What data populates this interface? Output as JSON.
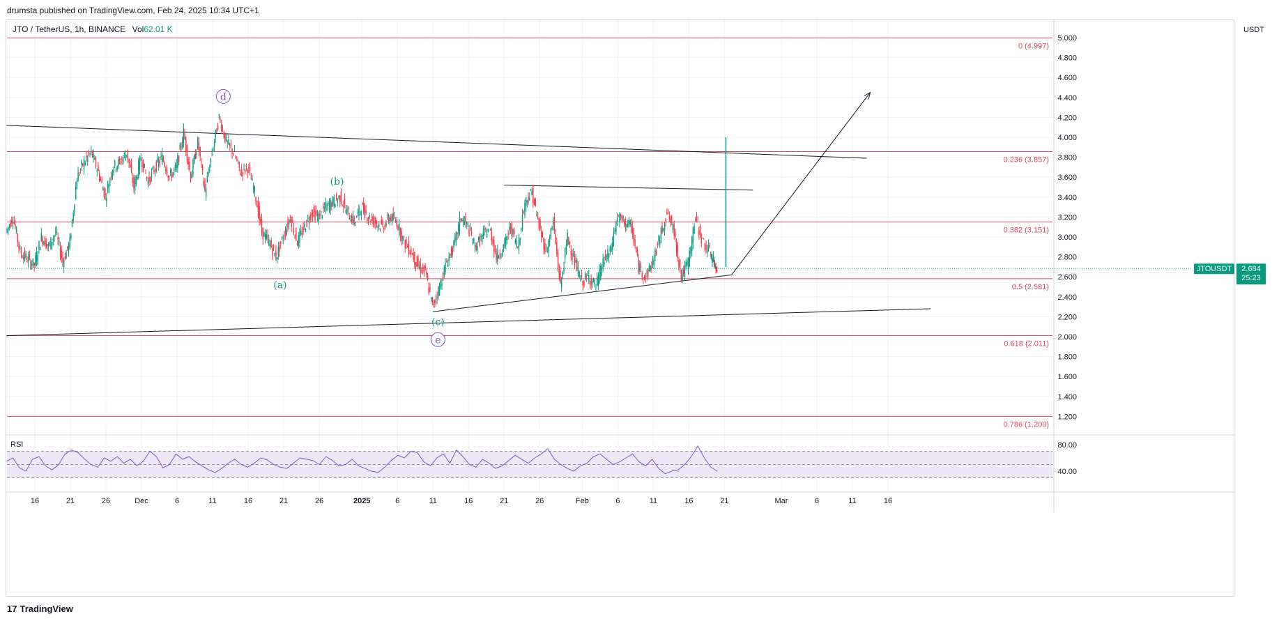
{
  "header": {
    "publisher_text": "drumsta published on TradingView.com, Feb 24, 2025 10:34 UTC+1"
  },
  "symbol": {
    "name": "JTO / TetherUS, 1h, BINANCE",
    "vol_label": "Vol",
    "vol_value": "62.01 K",
    "ticker": "JTOUSDT"
  },
  "price_axis": {
    "unit": "USDT",
    "last_price": "2.684",
    "countdown": "25:23"
  },
  "footer": {
    "brand": "TradingView"
  },
  "colors": {
    "up": "#089981",
    "down": "#f23645",
    "fib": "#d9485f",
    "trend": "#131722",
    "rsi": "#7e57c2",
    "rsi_band": "#ede7f6",
    "label_green": "#089981",
    "label_purple": "#7e57c2",
    "grid": "#f0f3fa"
  },
  "chart_data": {
    "type": "line",
    "title": "JTO / TetherUS, 1h, BINANCE",
    "ylim": [
      1.1,
      5.05
    ],
    "y_ticks": [
      "1.200",
      "1.400",
      "1.600",
      "1.800",
      "2.000",
      "2.200",
      "2.400",
      "2.600",
      "2.800",
      "3.000",
      "3.200",
      "3.400",
      "3.600",
      "3.800",
      "4.000",
      "4.200",
      "4.400",
      "4.600",
      "4.800",
      "5.000"
    ],
    "x_ticks": [
      {
        "label": "16",
        "day": 15
      },
      {
        "label": "21",
        "day": 20
      },
      {
        "label": "26",
        "day": 25
      },
      {
        "label": "Dec",
        "day": 30
      },
      {
        "label": "6",
        "day": 35
      },
      {
        "label": "11",
        "day": 40
      },
      {
        "label": "16",
        "day": 45
      },
      {
        "label": "21",
        "day": 50
      },
      {
        "label": "26",
        "day": 55
      },
      {
        "label": "2025",
        "day": 61
      },
      {
        "label": "6",
        "day": 66
      },
      {
        "label": "11",
        "day": 71
      },
      {
        "label": "16",
        "day": 76
      },
      {
        "label": "21",
        "day": 81
      },
      {
        "label": "26",
        "day": 86
      },
      {
        "label": "Feb",
        "day": 92
      },
      {
        "label": "6",
        "day": 97
      },
      {
        "label": "11",
        "day": 102
      },
      {
        "label": "16",
        "day": 107
      },
      {
        "label": "21",
        "day": 112
      },
      {
        "label": "Mar",
        "day": 120
      },
      {
        "label": "6",
        "day": 125
      },
      {
        "label": "11",
        "day": 130
      },
      {
        "label": "16",
        "day": 135
      }
    ],
    "price_path": [
      [
        11,
        3.05
      ],
      [
        12,
        3.2
      ],
      [
        13,
        2.85
      ],
      [
        14,
        2.78
      ],
      [
        15,
        2.72
      ],
      [
        16,
        3.0
      ],
      [
        17,
        2.9
      ],
      [
        18,
        3.05
      ],
      [
        19,
        2.75
      ],
      [
        20,
        2.95
      ],
      [
        21,
        3.6
      ],
      [
        22,
        3.75
      ],
      [
        23,
        3.85
      ],
      [
        24,
        3.65
      ],
      [
        25,
        3.4
      ],
      [
        26,
        3.7
      ],
      [
        27,
        3.75
      ],
      [
        28,
        3.85
      ],
      [
        29,
        3.5
      ],
      [
        30,
        3.8
      ],
      [
        31,
        3.55
      ],
      [
        32,
        3.7
      ],
      [
        33,
        3.8
      ],
      [
        34,
        3.6
      ],
      [
        35,
        3.7
      ],
      [
        36,
        4.05
      ],
      [
        37,
        3.6
      ],
      [
        38,
        3.95
      ],
      [
        39,
        3.45
      ],
      [
        40,
        3.85
      ],
      [
        41,
        4.2
      ],
      [
        42,
        3.95
      ],
      [
        43,
        3.85
      ],
      [
        44,
        3.65
      ],
      [
        45,
        3.7
      ],
      [
        46,
        3.45
      ],
      [
        47,
        3.05
      ],
      [
        48,
        2.95
      ],
      [
        49,
        2.8
      ],
      [
        50,
        3.0
      ],
      [
        51,
        3.2
      ],
      [
        52,
        2.95
      ],
      [
        53,
        3.1
      ],
      [
        54,
        3.25
      ],
      [
        55,
        3.2
      ],
      [
        56,
        3.3
      ],
      [
        57,
        3.35
      ],
      [
        58,
        3.4
      ],
      [
        59,
        3.25
      ],
      [
        60,
        3.15
      ],
      [
        61,
        3.3
      ],
      [
        62,
        3.2
      ],
      [
        63,
        3.15
      ],
      [
        64,
        3.1
      ],
      [
        65,
        3.2
      ],
      [
        66,
        3.15
      ],
      [
        67,
        2.95
      ],
      [
        68,
        2.85
      ],
      [
        69,
        2.7
      ],
      [
        70,
        2.65
      ],
      [
        71,
        2.3
      ],
      [
        72,
        2.5
      ],
      [
        73,
        2.75
      ],
      [
        74,
        2.9
      ],
      [
        75,
        3.2
      ],
      [
        76,
        3.1
      ],
      [
        77,
        2.9
      ],
      [
        78,
        3.0
      ],
      [
        79,
        3.1
      ],
      [
        80,
        2.8
      ],
      [
        81,
        2.9
      ],
      [
        82,
        3.1
      ],
      [
        83,
        2.9
      ],
      [
        84,
        3.35
      ],
      [
        85,
        3.45
      ],
      [
        86,
        3.1
      ],
      [
        87,
        2.85
      ],
      [
        88,
        3.15
      ],
      [
        89,
        2.5
      ],
      [
        90,
        3.0
      ],
      [
        91,
        2.75
      ],
      [
        92,
        2.55
      ],
      [
        93,
        2.6
      ],
      [
        94,
        2.5
      ],
      [
        95,
        2.75
      ],
      [
        96,
        2.85
      ],
      [
        97,
        3.2
      ],
      [
        98,
        3.15
      ],
      [
        99,
        3.1
      ],
      [
        100,
        2.7
      ],
      [
        101,
        2.6
      ],
      [
        102,
        2.75
      ],
      [
        103,
        3.0
      ],
      [
        104,
        3.25
      ],
      [
        105,
        3.05
      ],
      [
        106,
        2.6
      ],
      [
        107,
        2.75
      ],
      [
        108,
        3.2
      ],
      [
        109,
        2.95
      ],
      [
        110,
        2.85
      ],
      [
        110.5,
        2.75
      ],
      [
        111,
        2.7
      ]
    ],
    "fib_levels": [
      {
        "label": "0 (4.997)",
        "value": 4.997
      },
      {
        "label": "0.236 (3.857)",
        "value": 3.857
      },
      {
        "label": "0.382 (3.151)",
        "value": 3.151
      },
      {
        "label": "0.5 (2.581)",
        "value": 2.581
      },
      {
        "label": "0.618 (2.011)",
        "value": 2.011
      },
      {
        "label": "0.786 (1.200)",
        "value": 1.2
      }
    ],
    "trendlines": [
      {
        "from": [
          11,
          4.12
        ],
        "to": [
          132,
          3.79
        ]
      },
      {
        "from": [
          11,
          2.01
        ],
        "to": [
          141,
          2.28
        ]
      },
      {
        "from": [
          71,
          2.25
        ],
        "to": [
          113,
          2.62
        ]
      },
      {
        "from": [
          81,
          3.52
        ],
        "to": [
          116,
          3.47
        ]
      },
      {
        "from": [
          113,
          2.62
        ],
        "to": [
          132.5,
          4.45
        ]
      }
    ],
    "wave_labels": [
      {
        "text": "d",
        "day": 41.5,
        "price": 4.41,
        "circled": true,
        "color": "purple"
      },
      {
        "text": "(b)",
        "day": 57.5,
        "price": 3.56,
        "circled": false,
        "color": "green"
      },
      {
        "text": "(a)",
        "day": 49.5,
        "price": 2.52,
        "circled": false,
        "color": "green"
      },
      {
        "text": "(c)",
        "day": 71.7,
        "price": 2.15,
        "circled": false,
        "color": "green"
      },
      {
        "text": "e",
        "day": 71.7,
        "price": 1.97,
        "circled": true,
        "color": "purple"
      }
    ],
    "rsi": {
      "label": "RSI",
      "y_ticks": [
        "40.00",
        "80.00"
      ],
      "band": [
        30,
        70
      ],
      "ylim": [
        20,
        90
      ],
      "values": [
        55,
        60,
        45,
        40,
        58,
        62,
        48,
        42,
        50,
        66,
        72,
        68,
        58,
        50,
        46,
        60,
        55,
        62,
        52,
        58,
        48,
        55,
        70,
        62,
        45,
        50,
        66,
        58,
        62,
        54,
        48,
        42,
        38,
        44,
        52,
        58,
        50,
        46,
        52,
        60,
        57,
        50,
        46,
        44,
        52,
        60,
        58,
        56,
        50,
        62,
        56,
        48,
        50,
        58,
        48,
        44,
        40,
        38,
        46,
        56,
        64,
        60,
        70,
        68,
        54,
        48,
        60,
        66,
        52,
        72,
        62,
        50,
        46,
        58,
        52,
        44,
        48,
        56,
        64,
        58,
        52,
        60,
        66,
        74,
        58,
        50,
        44,
        40,
        48,
        52,
        62,
        66,
        58,
        50,
        54,
        60,
        66,
        54,
        48,
        58,
        44,
        36,
        40,
        42,
        50,
        62,
        78,
        60,
        46,
        40
      ]
    }
  }
}
